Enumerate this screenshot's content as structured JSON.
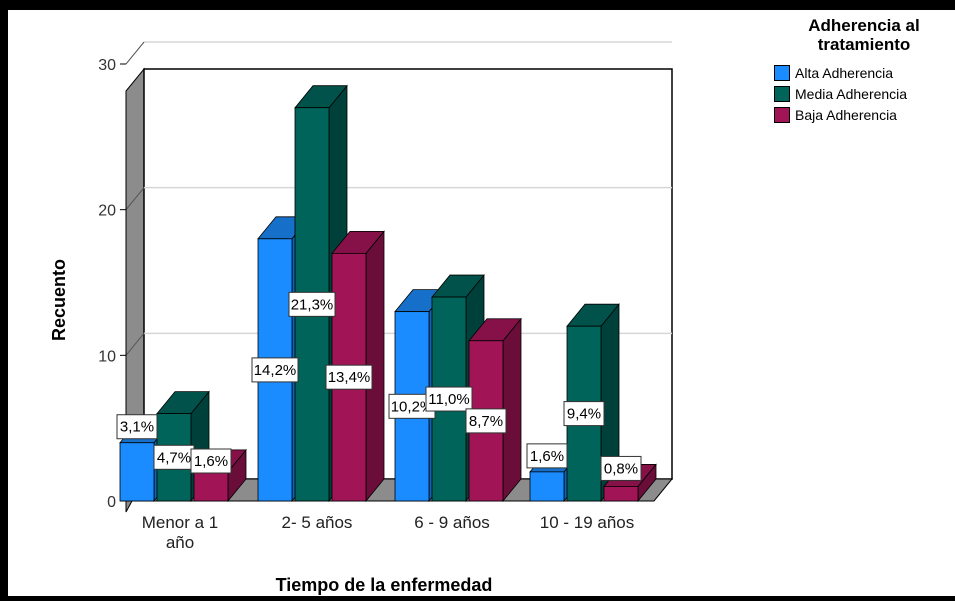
{
  "chart_data": {
    "type": "bar",
    "title": "",
    "xlabel": "Tiempo de la enfermedad",
    "ylabel": "Recuento",
    "categories": [
      "Menor a 1 año",
      "2- 5 años",
      "6 - 9 años",
      "10 - 19 años"
    ],
    "category_lines": [
      [
        "Menor a 1",
        "año"
      ],
      [
        "2- 5 años"
      ],
      [
        "6 - 9 años"
      ],
      [
        "10 - 19 años"
      ]
    ],
    "yticks": [
      0,
      10,
      20,
      30
    ],
    "ylim": [
      0,
      30
    ],
    "grid": true,
    "legend": {
      "title": "Adherencia al tratamiento",
      "title_lines": [
        "Adherencia al",
        "tratamiento"
      ],
      "position": "top-right"
    },
    "series": [
      {
        "name": "Alta Adherencia",
        "color": "#1a8cff",
        "side_color": "#0d62b3",
        "top_color": "#1670c9",
        "values": [
          4,
          18,
          13,
          2
        ],
        "labels": [
          "3,1%",
          "14,2%",
          "10,2%",
          "1,6%"
        ]
      },
      {
        "name": "Media Adherencia",
        "color": "#00645a",
        "side_color": "#00403a",
        "top_color": "#00524a",
        "values": [
          6,
          27,
          14,
          12
        ],
        "labels": [
          "4,7%",
          "21,3%",
          "11,0%",
          "9,4%"
        ]
      },
      {
        "name": "Baja Adherencia",
        "color": "#a11556",
        "side_color": "#6a0d39",
        "top_color": "#851148",
        "values": [
          2,
          17,
          11,
          1
        ],
        "labels": [
          "1,6%",
          "13,4%",
          "8,7%",
          "0,8%"
        ]
      }
    ]
  }
}
